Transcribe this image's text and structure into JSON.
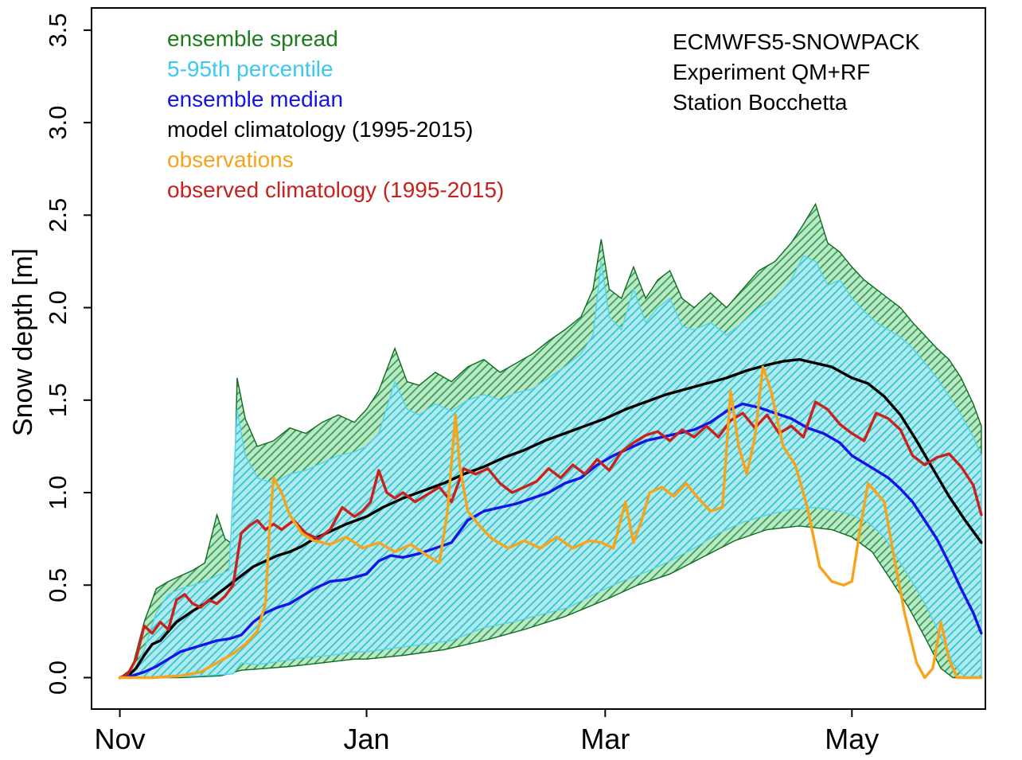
{
  "header": {
    "title_lines": [
      "ECMWFS5-SNOWPACK",
      "Experiment QM+RF",
      "Station Bocchetta"
    ]
  },
  "legend": {
    "items": [
      {
        "label": "ensemble spread",
        "color": "#1d7d1d"
      },
      {
        "label": "5-95th percentile",
        "color": "#3cc8f0"
      },
      {
        "label": "ensemble median",
        "color": "#1414e6"
      },
      {
        "label": "model climatology (1995-2015)",
        "color": "#000000"
      },
      {
        "label": "observations",
        "color": "#f5a41c"
      },
      {
        "label": "observed climatology (1995-2015)",
        "color": "#c8221f"
      }
    ]
  },
  "chart_data": {
    "type": "area",
    "title": "",
    "xlabel": "",
    "ylabel": "Snow depth [m]",
    "ylim": [
      -0.17,
      3.62
    ],
    "xlim_days": [
      -7,
      214
    ],
    "grid": false,
    "legend_position": "top-left-inside",
    "y_ticks": [
      0.0,
      0.5,
      1.0,
      1.5,
      2.0,
      2.5,
      3.0,
      3.5
    ],
    "x_ticks": [
      {
        "label": "Nov",
        "day": 0
      },
      {
        "label": "Jan",
        "day": 61
      },
      {
        "label": "Mar",
        "day": 120
      },
      {
        "label": "May",
        "day": 181
      }
    ],
    "bands": [
      {
        "name": "ensemble-spread",
        "legend_label": "ensemble spread",
        "edge_color": "#0e6b1f",
        "hatch_color": "#2e9e50",
        "fill_color": "#bce8c8",
        "fill_opacity": 1.0,
        "upper_x": [
          0,
          3,
          6,
          9,
          12,
          15,
          18,
          21,
          24,
          26,
          28,
          29,
          31,
          34,
          38,
          42,
          46,
          50,
          54,
          58,
          61,
          64,
          68,
          71,
          74,
          78,
          82,
          86,
          90,
          94,
          98,
          102,
          106,
          110,
          114,
          117,
          119,
          121,
          124,
          127,
          130,
          133,
          136,
          139,
          142,
          146,
          150,
          154,
          158,
          162,
          166,
          169,
          172,
          175,
          178,
          181,
          184,
          187,
          190,
          193,
          196,
          199,
          202,
          205,
          208,
          211,
          213
        ],
        "upper_y": [
          0,
          0.05,
          0.3,
          0.48,
          0.52,
          0.55,
          0.58,
          0.62,
          0.88,
          0.75,
          0.72,
          1.62,
          1.4,
          1.25,
          1.28,
          1.35,
          1.32,
          1.38,
          1.42,
          1.38,
          1.45,
          1.55,
          1.78,
          1.6,
          1.58,
          1.65,
          1.6,
          1.68,
          1.72,
          1.65,
          1.7,
          1.75,
          1.82,
          1.88,
          1.95,
          2.1,
          2.37,
          2.1,
          2.05,
          2.22,
          2.05,
          2.15,
          2.2,
          2.05,
          2.0,
          2.08,
          2.0,
          2.1,
          2.2,
          2.25,
          2.35,
          2.45,
          2.56,
          2.35,
          2.3,
          2.22,
          2.15,
          2.1,
          2.05,
          2.0,
          1.92,
          1.85,
          1.78,
          1.72,
          1.62,
          1.48,
          1.36
        ],
        "lower_x": [
          0,
          15,
          25,
          30,
          36,
          42,
          50,
          58,
          61,
          70,
          80,
          90,
          100,
          110,
          120,
          128,
          136,
          144,
          152,
          160,
          168,
          176,
          181,
          186,
          190,
          195,
          199,
          203,
          206,
          213
        ],
        "lower_y": [
          0,
          0,
          0.01,
          0.04,
          0.05,
          0.06,
          0.08,
          0.1,
          0.1,
          0.12,
          0.15,
          0.2,
          0.26,
          0.33,
          0.42,
          0.5,
          0.56,
          0.65,
          0.74,
          0.8,
          0.82,
          0.8,
          0.76,
          0.68,
          0.55,
          0.38,
          0.22,
          0.05,
          0.0,
          0.0
        ]
      },
      {
        "name": "percentile-5-95",
        "legend_label": "5-95th percentile",
        "edge_color": "#55d4f0",
        "hatch_color": "#2ec6e0",
        "fill_color": "#aeeaf0",
        "fill_opacity": 0.9,
        "upper_x": [
          0,
          3,
          6,
          9,
          12,
          15,
          18,
          21,
          24,
          27,
          29,
          31,
          34,
          38,
          42,
          46,
          50,
          54,
          58,
          61,
          64,
          68,
          71,
          74,
          78,
          82,
          86,
          90,
          94,
          98,
          102,
          106,
          110,
          114,
          117,
          119,
          121,
          124,
          127,
          130,
          133,
          136,
          139,
          142,
          146,
          150,
          154,
          158,
          162,
          166,
          169,
          172,
          175,
          178,
          181,
          184,
          187,
          190,
          193,
          196,
          199,
          202,
          205,
          208,
          211,
          213
        ],
        "upper_y": [
          0,
          0.02,
          0.15,
          0.35,
          0.45,
          0.48,
          0.5,
          0.52,
          0.55,
          0.58,
          1.45,
          1.2,
          1.08,
          1.05,
          1.1,
          1.12,
          1.16,
          1.2,
          1.22,
          1.25,
          1.32,
          1.6,
          1.45,
          1.42,
          1.48,
          1.44,
          1.5,
          1.53,
          1.5,
          1.54,
          1.56,
          1.62,
          1.68,
          1.75,
          1.85,
          2.25,
          1.95,
          1.88,
          2.1,
          1.92,
          2.0,
          2.05,
          1.9,
          1.88,
          1.92,
          1.85,
          1.92,
          2.0,
          2.05,
          2.15,
          2.28,
          2.25,
          2.12,
          2.15,
          2.05,
          1.98,
          1.92,
          1.88,
          1.84,
          1.78,
          1.7,
          1.62,
          1.52,
          1.42,
          1.3,
          1.2
        ],
        "lower_x": [
          0,
          10,
          20,
          28,
          30,
          34,
          40,
          46,
          52,
          58,
          61,
          68,
          75,
          82,
          90,
          97,
          104,
          111,
          118,
          124,
          130,
          136,
          142,
          148,
          154,
          160,
          166,
          172,
          178,
          181,
          185,
          189,
          193,
          197,
          200,
          203,
          206,
          209,
          213
        ],
        "lower_y": [
          0,
          0,
          0.01,
          0.02,
          0.08,
          0.07,
          0.09,
          0.11,
          0.12,
          0.14,
          0.14,
          0.16,
          0.18,
          0.2,
          0.27,
          0.3,
          0.34,
          0.38,
          0.46,
          0.52,
          0.57,
          0.63,
          0.7,
          0.78,
          0.84,
          0.88,
          0.91,
          0.92,
          0.9,
          0.88,
          0.84,
          0.76,
          0.62,
          0.48,
          0.36,
          0.22,
          0.08,
          0.0,
          0.0
        ]
      }
    ],
    "series": [
      {
        "name": "model-climatology",
        "legend_label": "model climatology (1995-2015)",
        "color": "#000000",
        "width": 3.4,
        "x": [
          0,
          2,
          4,
          6,
          8,
          10,
          12,
          14,
          16,
          18,
          21,
          24,
          27,
          30,
          33,
          36,
          39,
          42,
          45,
          48,
          52,
          56,
          61,
          65,
          70,
          75,
          80,
          85,
          90,
          95,
          100,
          105,
          110,
          115,
          120,
          125,
          130,
          135,
          140,
          145,
          150,
          155,
          160,
          164,
          168,
          172,
          176,
          181,
          185,
          189,
          193,
          197,
          201,
          205,
          209,
          213
        ],
        "y": [
          0,
          0.01,
          0.05,
          0.12,
          0.18,
          0.2,
          0.25,
          0.3,
          0.33,
          0.36,
          0.4,
          0.45,
          0.5,
          0.55,
          0.6,
          0.63,
          0.66,
          0.68,
          0.71,
          0.75,
          0.79,
          0.83,
          0.87,
          0.92,
          0.97,
          1.01,
          1.05,
          1.1,
          1.14,
          1.19,
          1.23,
          1.28,
          1.32,
          1.36,
          1.4,
          1.45,
          1.49,
          1.53,
          1.56,
          1.59,
          1.62,
          1.66,
          1.69,
          1.71,
          1.72,
          1.7,
          1.68,
          1.62,
          1.59,
          1.52,
          1.42,
          1.28,
          1.13,
          0.98,
          0.85,
          0.73
        ]
      },
      {
        "name": "ensemble-median",
        "legend_label": "ensemble median",
        "color": "#1414e6",
        "width": 3.4,
        "x": [
          0,
          3,
          6,
          9,
          12,
          15,
          18,
          21,
          24,
          27,
          30,
          33,
          36,
          39,
          42,
          45,
          48,
          52,
          56,
          61,
          64,
          67,
          70,
          74,
          78,
          82,
          86,
          90,
          94,
          98,
          102,
          106,
          110,
          114,
          118,
          122,
          126,
          130,
          134,
          138,
          142,
          146,
          150,
          154,
          158,
          162,
          166,
          170,
          174,
          178,
          181,
          184,
          187,
          190,
          193,
          196,
          199,
          202,
          205,
          208,
          211,
          213
        ],
        "y": [
          0,
          0.01,
          0.03,
          0.06,
          0.1,
          0.14,
          0.16,
          0.18,
          0.2,
          0.21,
          0.23,
          0.3,
          0.35,
          0.38,
          0.4,
          0.44,
          0.48,
          0.52,
          0.53,
          0.56,
          0.63,
          0.66,
          0.65,
          0.67,
          0.7,
          0.73,
          0.85,
          0.9,
          0.92,
          0.94,
          0.97,
          1.0,
          1.05,
          1.08,
          1.15,
          1.2,
          1.24,
          1.28,
          1.3,
          1.32,
          1.34,
          1.38,
          1.44,
          1.48,
          1.46,
          1.43,
          1.4,
          1.35,
          1.32,
          1.27,
          1.2,
          1.16,
          1.12,
          1.08,
          1.02,
          0.95,
          0.85,
          0.75,
          0.62,
          0.48,
          0.35,
          0.24
        ]
      },
      {
        "name": "observed-climatology",
        "legend_label": "observed climatology (1995-2015)",
        "color": "#c8221f",
        "width": 3.4,
        "x": [
          0,
          2,
          4,
          6,
          8,
          10,
          12,
          14,
          16,
          18,
          20,
          22,
          24,
          26,
          28,
          30,
          32,
          34,
          36,
          38,
          40,
          43,
          46,
          49,
          52,
          55,
          58,
          60,
          62,
          64,
          66,
          68,
          70,
          73,
          76,
          79,
          82,
          85,
          88,
          91,
          94,
          97,
          100,
          103,
          106,
          109,
          112,
          115,
          118,
          121,
          124,
          127,
          130,
          133,
          136,
          139,
          142,
          145,
          148,
          151,
          154,
          157,
          160,
          163,
          166,
          169,
          172,
          175,
          178,
          181,
          184,
          187,
          190,
          193,
          196,
          199,
          202,
          205,
          208,
          211,
          213
        ],
        "y": [
          0,
          0.02,
          0.1,
          0.28,
          0.24,
          0.3,
          0.26,
          0.42,
          0.45,
          0.4,
          0.38,
          0.42,
          0.4,
          0.44,
          0.5,
          0.78,
          0.82,
          0.85,
          0.8,
          0.83,
          0.8,
          0.85,
          0.78,
          0.75,
          0.8,
          0.92,
          0.87,
          0.9,
          0.95,
          1.12,
          1.0,
          0.97,
          1.0,
          0.95,
          0.99,
          1.03,
          0.95,
          1.13,
          1.1,
          1.13,
          1.05,
          1.0,
          1.03,
          1.06,
          1.13,
          1.08,
          1.15,
          1.1,
          1.18,
          1.12,
          1.22,
          1.27,
          1.31,
          1.33,
          1.28,
          1.34,
          1.3,
          1.36,
          1.3,
          1.39,
          1.43,
          1.35,
          1.42,
          1.32,
          1.36,
          1.3,
          1.49,
          1.45,
          1.37,
          1.32,
          1.28,
          1.43,
          1.4,
          1.34,
          1.2,
          1.15,
          1.19,
          1.21,
          1.14,
          1.04,
          0.88
        ]
      },
      {
        "name": "observations",
        "legend_label": "observations",
        "color": "#f5a41c",
        "width": 3.4,
        "x": [
          0,
          8,
          15,
          20,
          24,
          28,
          31,
          34,
          36,
          37,
          38,
          40,
          42,
          45,
          48,
          52,
          56,
          60,
          64,
          68,
          72,
          76,
          79,
          81,
          83,
          84,
          86,
          89,
          92,
          96,
          100,
          104,
          108,
          112,
          116,
          119,
          122,
          125,
          127,
          129,
          131,
          134,
          137,
          140,
          143,
          146,
          149,
          151,
          153,
          155,
          157,
          159,
          161,
          164,
          167,
          170,
          173,
          176,
          179,
          181,
          183,
          185,
          187,
          189,
          191,
          194,
          197,
          199,
          201,
          203,
          205,
          207,
          210,
          213
        ],
        "y": [
          0,
          0,
          0.01,
          0.03,
          0.08,
          0.13,
          0.18,
          0.25,
          0.4,
          0.8,
          1.08,
          1.0,
          0.88,
          0.78,
          0.74,
          0.72,
          0.76,
          0.7,
          0.73,
          0.68,
          0.72,
          0.66,
          0.62,
          0.9,
          1.42,
          1.15,
          0.9,
          0.82,
          0.75,
          0.7,
          0.74,
          0.7,
          0.76,
          0.7,
          0.74,
          0.73,
          0.7,
          0.95,
          0.73,
          0.85,
          1.0,
          1.03,
          0.98,
          1.05,
          0.97,
          0.9,
          0.92,
          1.55,
          1.25,
          1.1,
          1.3,
          1.68,
          1.55,
          1.25,
          1.15,
          0.92,
          0.6,
          0.52,
          0.5,
          0.52,
          0.8,
          1.05,
          1.0,
          0.95,
          0.7,
          0.35,
          0.08,
          0.0,
          0.05,
          0.3,
          0.1,
          0.0,
          0.0,
          0.0
        ]
      }
    ]
  }
}
